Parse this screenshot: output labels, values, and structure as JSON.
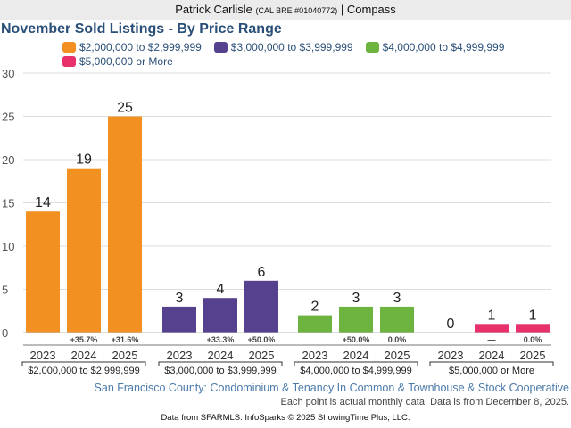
{
  "header": {
    "agent": "Patrick Carlisle",
    "license": "(CAL BRE #01040772)",
    "separator": "|",
    "brokerage": "Compass"
  },
  "chart_data": {
    "type": "bar",
    "title": "November Sold Listings - By Price Range",
    "xlabel": "",
    "ylabel": "",
    "ylim": [
      0,
      30
    ],
    "yticks": [
      0,
      5,
      10,
      15,
      20,
      25,
      30
    ],
    "grid": true,
    "legend_position": "top",
    "years": [
      "2023",
      "2024",
      "2025"
    ],
    "groups": [
      {
        "name": "$2,000,000 to $2,999,999",
        "color": "#f29022",
        "values": [
          14,
          19,
          25
        ],
        "changes": [
          "",
          "+35.7%",
          "+31.6%"
        ]
      },
      {
        "name": "$3,000,000 to $3,999,999",
        "color": "#56418f",
        "values": [
          3,
          4,
          6
        ],
        "changes": [
          "",
          "+33.3%",
          "+50.0%"
        ]
      },
      {
        "name": "$4,000,000 to $4,999,999",
        "color": "#6db33f",
        "values": [
          2,
          3,
          3
        ],
        "changes": [
          "",
          "+50.0%",
          "0.0%"
        ]
      },
      {
        "name": "$5,000,000 or More",
        "color": "#e8306b",
        "values": [
          0,
          1,
          1
        ],
        "changes": [
          "",
          "—",
          "0.0%"
        ]
      }
    ]
  },
  "footer": {
    "subtitle": "San Francisco County: Condominium & Tenancy In Common & Townhouse & Stock Cooperative",
    "note": "Each point is actual monthly data. Data is from December 8, 2025.",
    "source": "Data from SFARMLS. InfoSparks © 2025 ShowingTime Plus, LLC."
  }
}
